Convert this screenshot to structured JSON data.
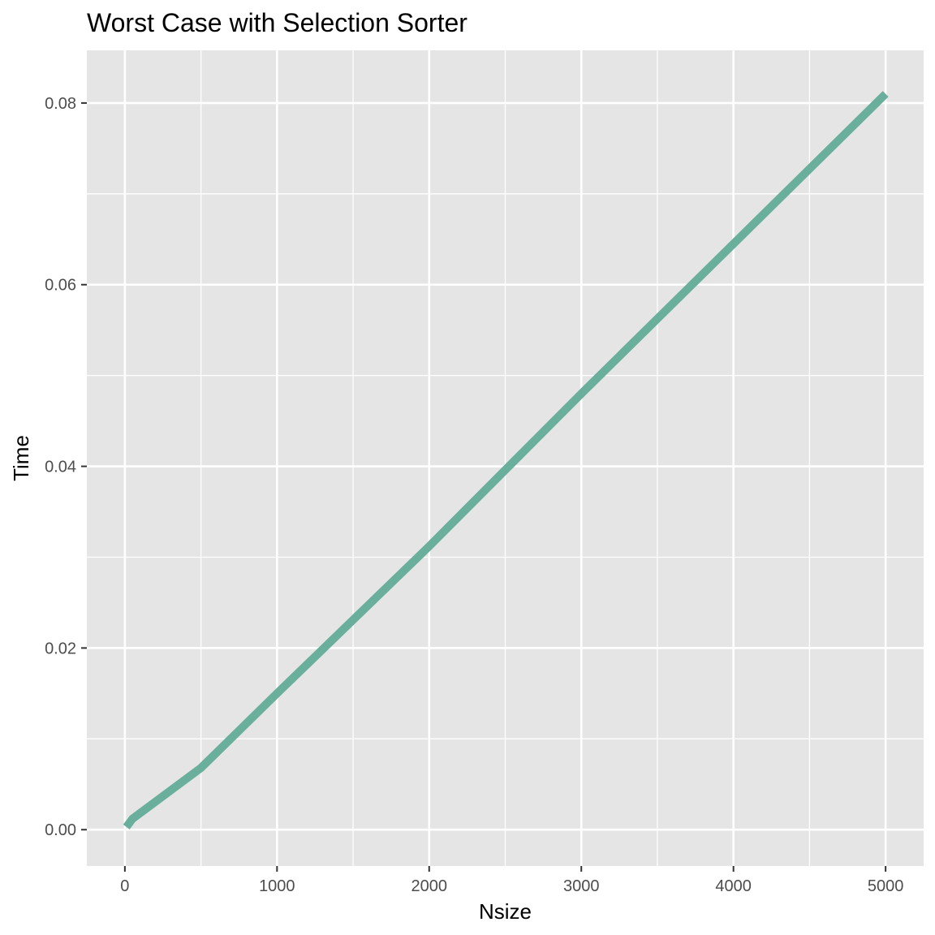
{
  "chart_data": {
    "type": "line",
    "title": "Worst Case with Selection Sorter",
    "xlabel": "Nsize",
    "ylabel": "Time",
    "xlim": [
      -250,
      5250
    ],
    "ylim": [
      -0.004,
      0.0858
    ],
    "x_ticks": [
      0,
      1000,
      2000,
      3000,
      4000,
      5000
    ],
    "x_tick_labels": [
      "0",
      "1000",
      "2000",
      "3000",
      "4000",
      "5000"
    ],
    "x_minor_ticks": [
      500,
      1500,
      2500,
      3500,
      4500
    ],
    "y_ticks": [
      0.0,
      0.02,
      0.04,
      0.06,
      0.08
    ],
    "y_tick_labels": [
      "0.00",
      "0.02",
      "0.04",
      "0.06",
      "0.08"
    ],
    "y_minor_ticks": [
      0.01,
      0.03,
      0.05,
      0.07
    ],
    "grid": true,
    "legend": "none",
    "series": [
      {
        "color": "#6aaf9c",
        "x": [
          10,
          50,
          500,
          1000,
          2000,
          3000,
          4000,
          5000
        ],
        "y": [
          0.0003,
          0.0012,
          0.0068,
          0.015,
          0.0312,
          0.048,
          0.0645,
          0.081
        ]
      }
    ]
  }
}
